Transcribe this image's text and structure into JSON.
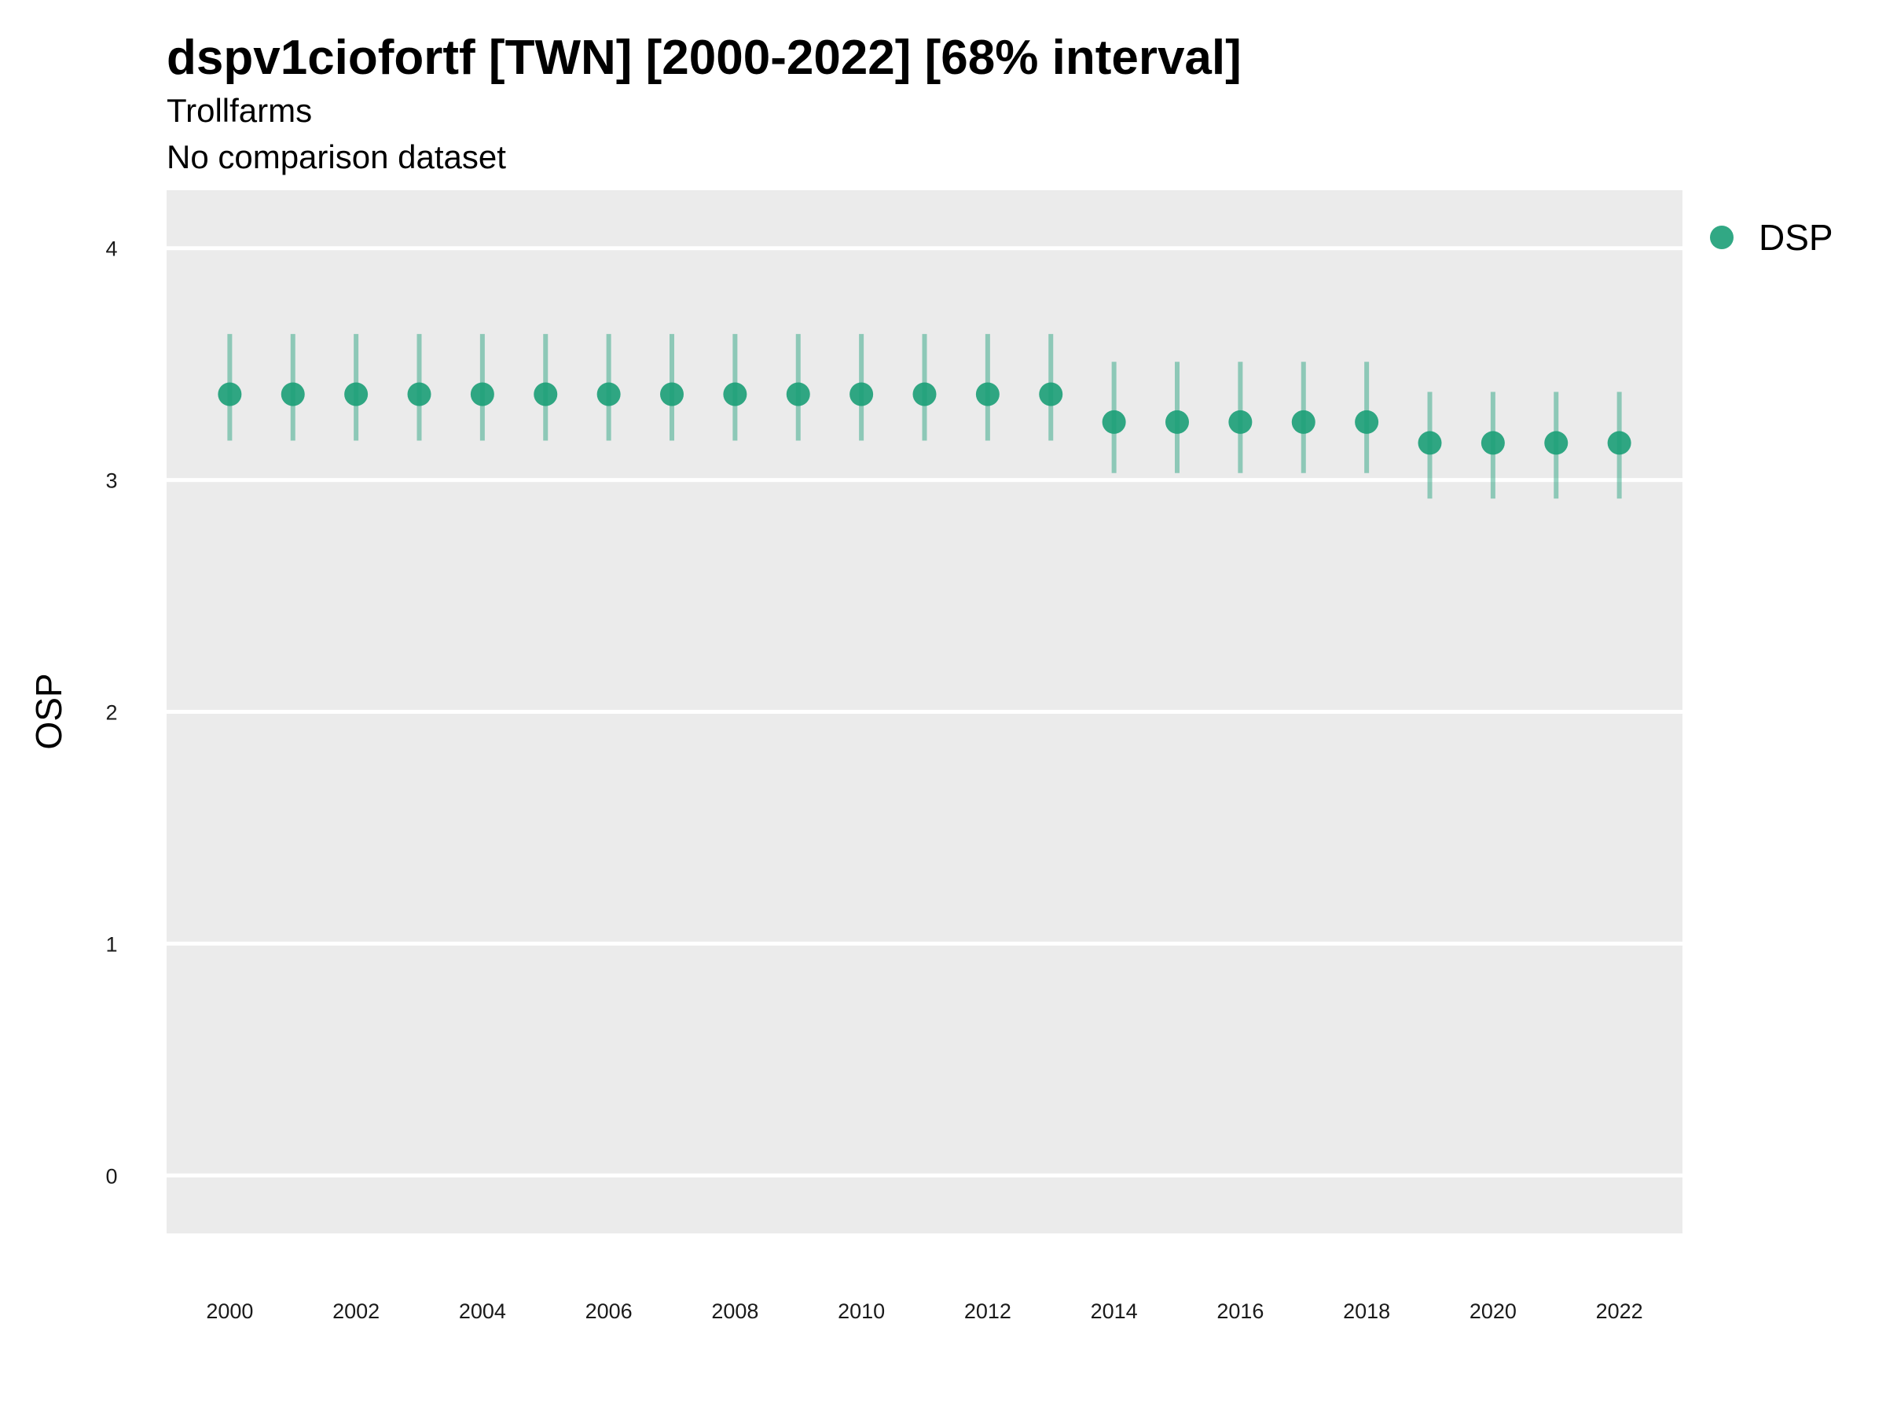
{
  "chart_data": {
    "type": "scatter",
    "title": "dspv1ciofortf [TWN] [2000-2022] [68% interval]",
    "subtitle": "Trollfarms",
    "caption_line": "No comparison dataset",
    "xlabel": "",
    "ylabel": "OSP",
    "ylim": [
      -0.25,
      4.25
    ],
    "xlim": [
      1999,
      2023
    ],
    "yticks": [
      0,
      1,
      2,
      3,
      4
    ],
    "xticks": [
      2000,
      2002,
      2004,
      2006,
      2008,
      2010,
      2012,
      2014,
      2016,
      2018,
      2020,
      2022
    ],
    "grid": true,
    "legend_position": "right",
    "series": [
      {
        "name": "DSP",
        "color": "#1b9e77",
        "x": [
          2000,
          2001,
          2002,
          2003,
          2004,
          2005,
          2006,
          2007,
          2008,
          2009,
          2010,
          2011,
          2012,
          2013,
          2014,
          2015,
          2016,
          2017,
          2018,
          2019,
          2020,
          2021,
          2022
        ],
        "y": [
          3.37,
          3.37,
          3.37,
          3.37,
          3.37,
          3.37,
          3.37,
          3.37,
          3.37,
          3.37,
          3.37,
          3.37,
          3.37,
          3.37,
          3.25,
          3.25,
          3.25,
          3.25,
          3.25,
          3.16,
          3.16,
          3.16,
          3.16
        ],
        "lower": [
          3.17,
          3.17,
          3.17,
          3.17,
          3.17,
          3.17,
          3.17,
          3.17,
          3.17,
          3.17,
          3.17,
          3.17,
          3.17,
          3.17,
          3.03,
          3.03,
          3.03,
          3.03,
          3.03,
          2.92,
          2.92,
          2.92,
          2.92
        ],
        "upper": [
          3.63,
          3.63,
          3.63,
          3.63,
          3.63,
          3.63,
          3.63,
          3.63,
          3.63,
          3.63,
          3.63,
          3.63,
          3.63,
          3.63,
          3.51,
          3.51,
          3.51,
          3.51,
          3.51,
          3.38,
          3.38,
          3.38,
          3.38
        ]
      }
    ]
  },
  "colors": {
    "panel_background": "#ebebeb",
    "gridline": "#ffffff",
    "point": "#1b9e77"
  }
}
